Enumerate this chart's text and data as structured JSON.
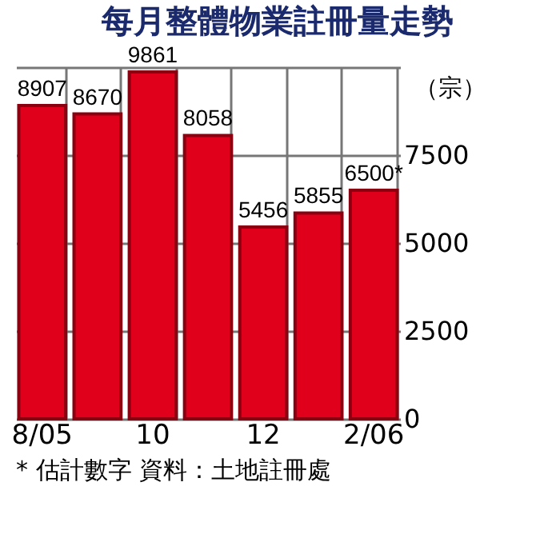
{
  "chart_data": {
    "type": "bar",
    "title": "每月整體物業註冊量走勢",
    "ylabel": "（宗）",
    "categories": [
      "8/05",
      null,
      "10",
      null,
      "12",
      null,
      "2/06"
    ],
    "values": [
      8907,
      8670,
      9861,
      8058,
      5456,
      5855,
      6500
    ],
    "value_labels": [
      "8907",
      "8670",
      "9861",
      "8058",
      "5456",
      "5855",
      "6500*"
    ],
    "color": "#e0001b",
    "ylim": [
      0,
      10000
    ],
    "yticks": [
      0,
      2500,
      5000,
      7500,
      {
        "value": 10000,
        "label": null
      }
    ],
    "grid": true,
    "annotations": [
      "* 估計數字",
      "資料：土地註冊處"
    ]
  }
}
